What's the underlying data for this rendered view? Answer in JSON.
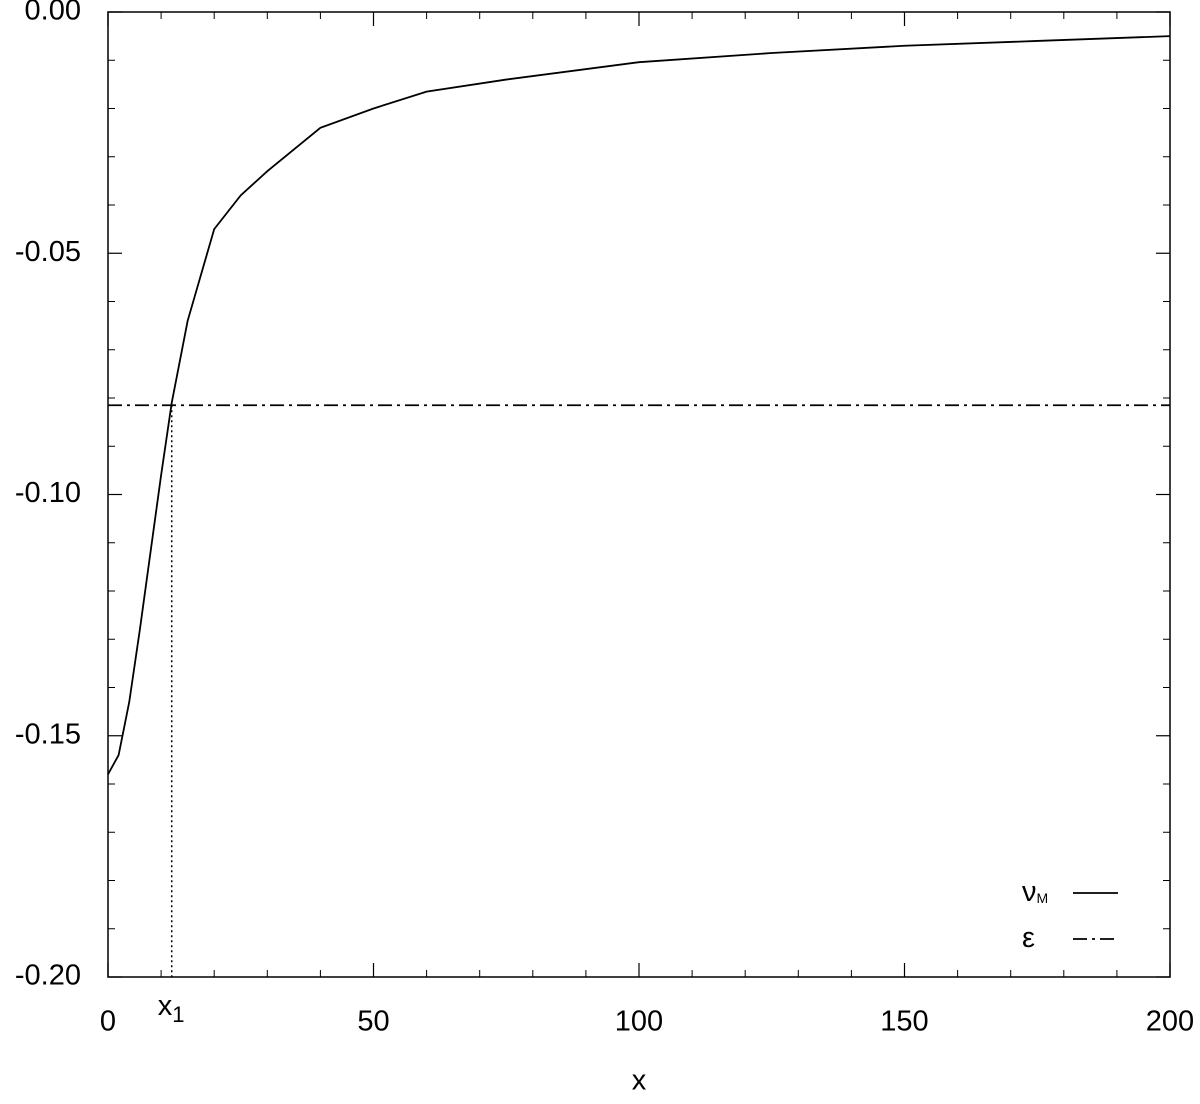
{
  "chart_data": {
    "type": "line",
    "xlabel": "x",
    "xlim": [
      0,
      200
    ],
    "xticks": [
      0,
      50,
      100,
      150,
      200
    ],
    "xminorticks": [
      10,
      20,
      30,
      40,
      60,
      70,
      80,
      90,
      110,
      120,
      130,
      140,
      160,
      170,
      180,
      190
    ],
    "ylim": [
      -0.2,
      0
    ],
    "yticks": [
      {
        "value": -0.2,
        "label": "-0.20"
      },
      -0.15,
      {
        "value": -0.1,
        "label": "-0.10"
      },
      -0.05,
      {
        "value": 0,
        "label": "0.00"
      }
    ],
    "yminorticks": [
      -0.19,
      -0.18,
      -0.17,
      -0.16,
      -0.14,
      -0.13,
      -0.12,
      -0.11,
      -0.09,
      -0.08,
      -0.07,
      -0.06,
      -0.04,
      -0.03,
      -0.02,
      -0.01
    ],
    "legend": "lower right",
    "series": [
      {
        "name": "ν",
        "name_sub": "M",
        "color": "#000000",
        "dash": "solid",
        "x": [
          0,
          2,
          4,
          6,
          8,
          10,
          12,
          15,
          20,
          25,
          30,
          40,
          50,
          60,
          75,
          100,
          125,
          150,
          175,
          200
        ],
        "values": [
          -0.158,
          -0.154,
          -0.143,
          -0.128,
          -0.112,
          -0.096,
          -0.081,
          -0.064,
          -0.045,
          -0.038,
          -0.033,
          -0.024,
          -0.02,
          -0.0165,
          -0.014,
          -0.0104,
          -0.0085,
          -0.007,
          -0.006,
          -0.005
        ]
      },
      {
        "name": "ε",
        "color": "#000000",
        "dash": "dashdot",
        "x": [
          0,
          200
        ],
        "values": [
          -0.0815,
          -0.0815
        ]
      }
    ],
    "annotations": [
      {
        "text": "x",
        "sub": "1",
        "x": 12,
        "y": -0.0815
      }
    ]
  }
}
